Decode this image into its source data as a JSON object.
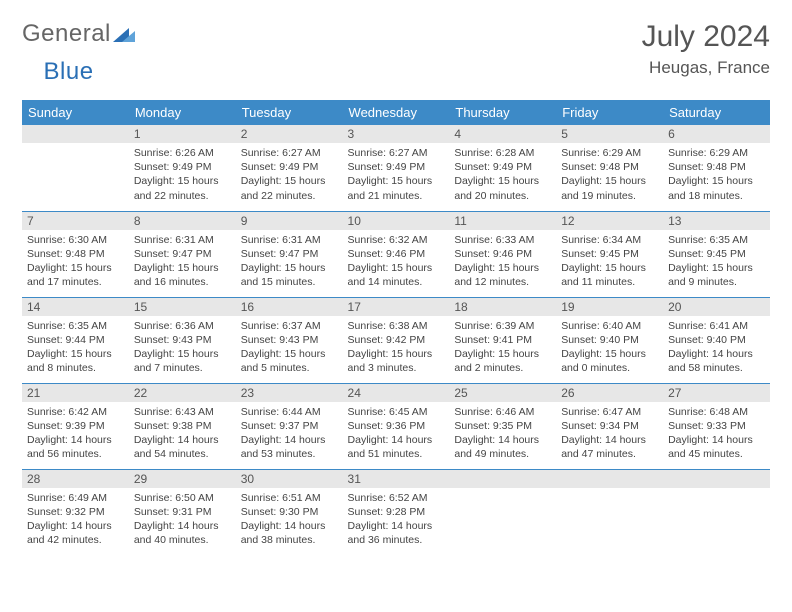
{
  "brand": {
    "part1": "General",
    "part2": "Blue",
    "logo_color": "#2a6fb5"
  },
  "title": {
    "month": "July 2024",
    "location": "Heugas, France"
  },
  "colors": {
    "header_bg": "#3d8ac7",
    "header_text": "#ffffff",
    "daynum_bg": "#e7e7e7",
    "row_border": "#3d8ac7",
    "body_text": "#444444",
    "title_text": "#555555"
  },
  "typography": {
    "month_title_fontsize": 30,
    "location_fontsize": 17,
    "weekday_fontsize": 13,
    "cell_fontsize": 10.5,
    "font_family": "Arial"
  },
  "weekdays": [
    "Sunday",
    "Monday",
    "Tuesday",
    "Wednesday",
    "Thursday",
    "Friday",
    "Saturday"
  ],
  "weeks": [
    [
      null,
      {
        "n": "1",
        "sunrise": "6:26 AM",
        "sunset": "9:49 PM",
        "daylight": "15 hours and 22 minutes."
      },
      {
        "n": "2",
        "sunrise": "6:27 AM",
        "sunset": "9:49 PM",
        "daylight": "15 hours and 22 minutes."
      },
      {
        "n": "3",
        "sunrise": "6:27 AM",
        "sunset": "9:49 PM",
        "daylight": "15 hours and 21 minutes."
      },
      {
        "n": "4",
        "sunrise": "6:28 AM",
        "sunset": "9:49 PM",
        "daylight": "15 hours and 20 minutes."
      },
      {
        "n": "5",
        "sunrise": "6:29 AM",
        "sunset": "9:48 PM",
        "daylight": "15 hours and 19 minutes."
      },
      {
        "n": "6",
        "sunrise": "6:29 AM",
        "sunset": "9:48 PM",
        "daylight": "15 hours and 18 minutes."
      }
    ],
    [
      {
        "n": "7",
        "sunrise": "6:30 AM",
        "sunset": "9:48 PM",
        "daylight": "15 hours and 17 minutes."
      },
      {
        "n": "8",
        "sunrise": "6:31 AM",
        "sunset": "9:47 PM",
        "daylight": "15 hours and 16 minutes."
      },
      {
        "n": "9",
        "sunrise": "6:31 AM",
        "sunset": "9:47 PM",
        "daylight": "15 hours and 15 minutes."
      },
      {
        "n": "10",
        "sunrise": "6:32 AM",
        "sunset": "9:46 PM",
        "daylight": "15 hours and 14 minutes."
      },
      {
        "n": "11",
        "sunrise": "6:33 AM",
        "sunset": "9:46 PM",
        "daylight": "15 hours and 12 minutes."
      },
      {
        "n": "12",
        "sunrise": "6:34 AM",
        "sunset": "9:45 PM",
        "daylight": "15 hours and 11 minutes."
      },
      {
        "n": "13",
        "sunrise": "6:35 AM",
        "sunset": "9:45 PM",
        "daylight": "15 hours and 9 minutes."
      }
    ],
    [
      {
        "n": "14",
        "sunrise": "6:35 AM",
        "sunset": "9:44 PM",
        "daylight": "15 hours and 8 minutes."
      },
      {
        "n": "15",
        "sunrise": "6:36 AM",
        "sunset": "9:43 PM",
        "daylight": "15 hours and 7 minutes."
      },
      {
        "n": "16",
        "sunrise": "6:37 AM",
        "sunset": "9:43 PM",
        "daylight": "15 hours and 5 minutes."
      },
      {
        "n": "17",
        "sunrise": "6:38 AM",
        "sunset": "9:42 PM",
        "daylight": "15 hours and 3 minutes."
      },
      {
        "n": "18",
        "sunrise": "6:39 AM",
        "sunset": "9:41 PM",
        "daylight": "15 hours and 2 minutes."
      },
      {
        "n": "19",
        "sunrise": "6:40 AM",
        "sunset": "9:40 PM",
        "daylight": "15 hours and 0 minutes."
      },
      {
        "n": "20",
        "sunrise": "6:41 AM",
        "sunset": "9:40 PM",
        "daylight": "14 hours and 58 minutes."
      }
    ],
    [
      {
        "n": "21",
        "sunrise": "6:42 AM",
        "sunset": "9:39 PM",
        "daylight": "14 hours and 56 minutes."
      },
      {
        "n": "22",
        "sunrise": "6:43 AM",
        "sunset": "9:38 PM",
        "daylight": "14 hours and 54 minutes."
      },
      {
        "n": "23",
        "sunrise": "6:44 AM",
        "sunset": "9:37 PM",
        "daylight": "14 hours and 53 minutes."
      },
      {
        "n": "24",
        "sunrise": "6:45 AM",
        "sunset": "9:36 PM",
        "daylight": "14 hours and 51 minutes."
      },
      {
        "n": "25",
        "sunrise": "6:46 AM",
        "sunset": "9:35 PM",
        "daylight": "14 hours and 49 minutes."
      },
      {
        "n": "26",
        "sunrise": "6:47 AM",
        "sunset": "9:34 PM",
        "daylight": "14 hours and 47 minutes."
      },
      {
        "n": "27",
        "sunrise": "6:48 AM",
        "sunset": "9:33 PM",
        "daylight": "14 hours and 45 minutes."
      }
    ],
    [
      {
        "n": "28",
        "sunrise": "6:49 AM",
        "sunset": "9:32 PM",
        "daylight": "14 hours and 42 minutes."
      },
      {
        "n": "29",
        "sunrise": "6:50 AM",
        "sunset": "9:31 PM",
        "daylight": "14 hours and 40 minutes."
      },
      {
        "n": "30",
        "sunrise": "6:51 AM",
        "sunset": "9:30 PM",
        "daylight": "14 hours and 38 minutes."
      },
      {
        "n": "31",
        "sunrise": "6:52 AM",
        "sunset": "9:28 PM",
        "daylight": "14 hours and 36 minutes."
      },
      null,
      null,
      null
    ]
  ],
  "labels": {
    "sunrise": "Sunrise:",
    "sunset": "Sunset:",
    "daylight": "Daylight:"
  }
}
